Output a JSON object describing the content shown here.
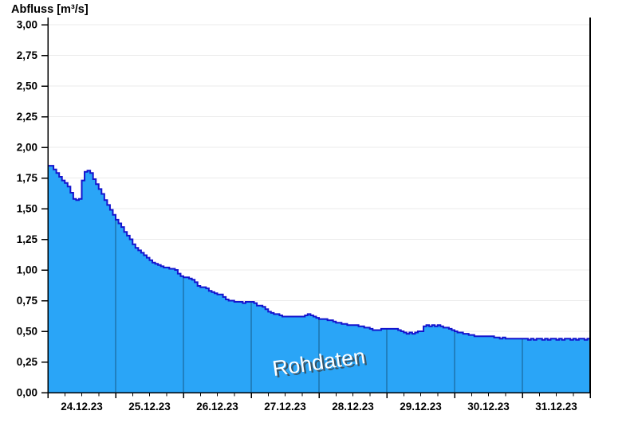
{
  "chart_data": {
    "type": "area",
    "title": "Abfluss [m³/s]",
    "watermark": "Rohdaten",
    "ylabel": "Abfluss [m³/s]",
    "xlabel": "",
    "ylim": [
      0,
      3
    ],
    "ytick_step": 0.25,
    "ytick_labels": [
      "3,00",
      "2,75",
      "2,50",
      "2,25",
      "2,00",
      "1,75",
      "1,50",
      "1,25",
      "1,00",
      "0,75",
      "0,50",
      "0,25",
      "0,00"
    ],
    "categories": [
      "24.12.23",
      "25.12.23",
      "26.12.23",
      "27.12.23",
      "28.12.23",
      "29.12.23",
      "30.12.23",
      "31.12.23"
    ],
    "grid": "horizontal-only",
    "legend": "none",
    "minor_ticks_per_day": 4,
    "series": [
      {
        "name": "Abfluss Rohdaten",
        "unit": "m³/s",
        "interval": "1h",
        "points_per_day": 24,
        "values": [
          1.85,
          1.85,
          1.82,
          1.79,
          1.76,
          1.73,
          1.71,
          1.68,
          1.63,
          1.58,
          1.57,
          1.58,
          1.73,
          1.8,
          1.81,
          1.79,
          1.74,
          1.7,
          1.66,
          1.62,
          1.57,
          1.53,
          1.49,
          1.45,
          1.41,
          1.38,
          1.35,
          1.31,
          1.28,
          1.25,
          1.21,
          1.18,
          1.16,
          1.14,
          1.12,
          1.1,
          1.08,
          1.06,
          1.05,
          1.04,
          1.03,
          1.02,
          1.02,
          1.01,
          1.01,
          1.0,
          0.97,
          0.95,
          0.94,
          0.94,
          0.93,
          0.92,
          0.9,
          0.87,
          0.86,
          0.86,
          0.85,
          0.83,
          0.82,
          0.81,
          0.8,
          0.8,
          0.78,
          0.76,
          0.75,
          0.75,
          0.74,
          0.74,
          0.74,
          0.73,
          0.74,
          0.74,
          0.74,
          0.73,
          0.71,
          0.71,
          0.7,
          0.68,
          0.66,
          0.65,
          0.64,
          0.64,
          0.63,
          0.62,
          0.62,
          0.62,
          0.62,
          0.62,
          0.62,
          0.62,
          0.62,
          0.63,
          0.64,
          0.63,
          0.62,
          0.61,
          0.6,
          0.6,
          0.6,
          0.59,
          0.59,
          0.58,
          0.57,
          0.57,
          0.56,
          0.56,
          0.55,
          0.55,
          0.55,
          0.55,
          0.54,
          0.54,
          0.53,
          0.53,
          0.52,
          0.51,
          0.51,
          0.51,
          0.52,
          0.52,
          0.52,
          0.52,
          0.52,
          0.52,
          0.51,
          0.5,
          0.49,
          0.48,
          0.49,
          0.48,
          0.49,
          0.5,
          0.5,
          0.54,
          0.55,
          0.54,
          0.55,
          0.54,
          0.55,
          0.54,
          0.53,
          0.53,
          0.52,
          0.51,
          0.5,
          0.49,
          0.49,
          0.48,
          0.48,
          0.47,
          0.47,
          0.46,
          0.46,
          0.46,
          0.46,
          0.46,
          0.46,
          0.46,
          0.45,
          0.45,
          0.44,
          0.45,
          0.44,
          0.44,
          0.44,
          0.44,
          0.44,
          0.44,
          0.44,
          0.44,
          0.43,
          0.44,
          0.43,
          0.44,
          0.44,
          0.43,
          0.44,
          0.43,
          0.44,
          0.44,
          0.43,
          0.44,
          0.43,
          0.44,
          0.44,
          0.43,
          0.44,
          0.43,
          0.44,
          0.44,
          0.43,
          0.44
        ]
      }
    ],
    "colors": {
      "area_fill": "#2AA5F7",
      "area_stroke": "#1414CE",
      "grid": "#EBEBEB",
      "axis": "#000000",
      "day_divider": "rgba(0,0,0,0.45)",
      "watermark_fill": "#FFFFFF",
      "watermark_shadow": "#3C3C3C",
      "text": "#000000",
      "background": "#FFFFFF"
    }
  }
}
